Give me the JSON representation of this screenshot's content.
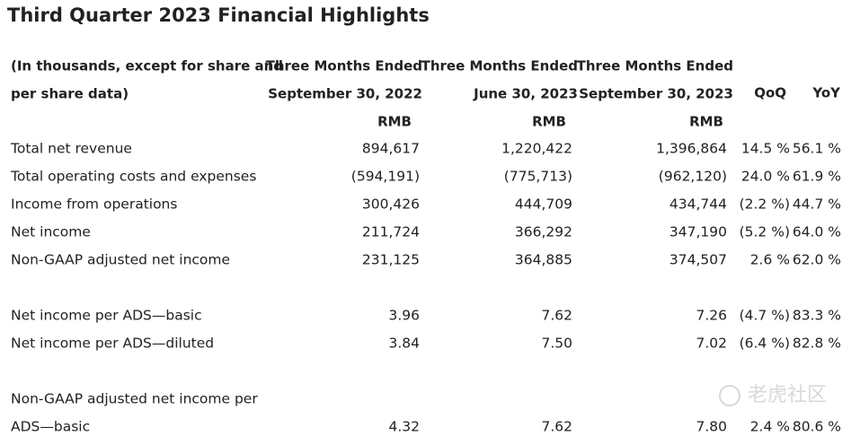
{
  "title": "Third Quarter 2023 Financial Highlights",
  "table": {
    "header": {
      "label_lines": [
        "(In thousands, except for share and",
        "per share data)"
      ],
      "columns": [
        {
          "lines": [
            "Three Months Ended",
            "September 30, 2022"
          ],
          "unit": "RMB"
        },
        {
          "lines": [
            "Three Months Ended",
            "June 30, 2023"
          ],
          "unit": "RMB"
        },
        {
          "lines": [
            "Three Months Ended",
            "September 30, 2023"
          ],
          "unit": "RMB"
        }
      ],
      "qoq": "QoQ",
      "yoy": "YoY"
    },
    "sections": [
      [
        {
          "label": [
            "Total net revenue"
          ],
          "values": [
            "894,617",
            "1,220,422",
            "1,396,864",
            "14.5 %",
            "56.1 %"
          ]
        },
        {
          "label": [
            "Total operating costs and expenses"
          ],
          "values": [
            "(594,191)",
            "(775,713)",
            "(962,120)",
            "24.0 %",
            "61.9 %"
          ]
        },
        {
          "label": [
            "Income from operations"
          ],
          "values": [
            "300,426",
            "444,709",
            "434,744",
            "(2.2 %)",
            "44.7 %"
          ]
        },
        {
          "label": [
            "Net income"
          ],
          "values": [
            "211,724",
            "366,292",
            "347,190",
            "(5.2 %)",
            "64.0 %"
          ]
        },
        {
          "label": [
            "Non-GAAP adjusted net income"
          ],
          "values": [
            "231,125",
            "364,885",
            "374,507",
            "2.6 %",
            "62.0 %"
          ]
        }
      ],
      [
        {
          "label": [
            "Net income per ADS—basic"
          ],
          "values": [
            "3.96",
            "7.62",
            "7.26",
            "(4.7 %)",
            "83.3 %"
          ]
        },
        {
          "label": [
            "Net income per ADS—diluted"
          ],
          "values": [
            "3.84",
            "7.50",
            "7.02",
            "(6.4 %)",
            "82.8 %"
          ]
        }
      ],
      [
        {
          "label": [
            "Non-GAAP adjusted net income per",
            "ADS—basic"
          ],
          "values": [
            "4.32",
            "7.62",
            "7.80",
            "2.4 %",
            "80.6 %"
          ]
        }
      ]
    ]
  },
  "watermark": "老虎社区"
}
